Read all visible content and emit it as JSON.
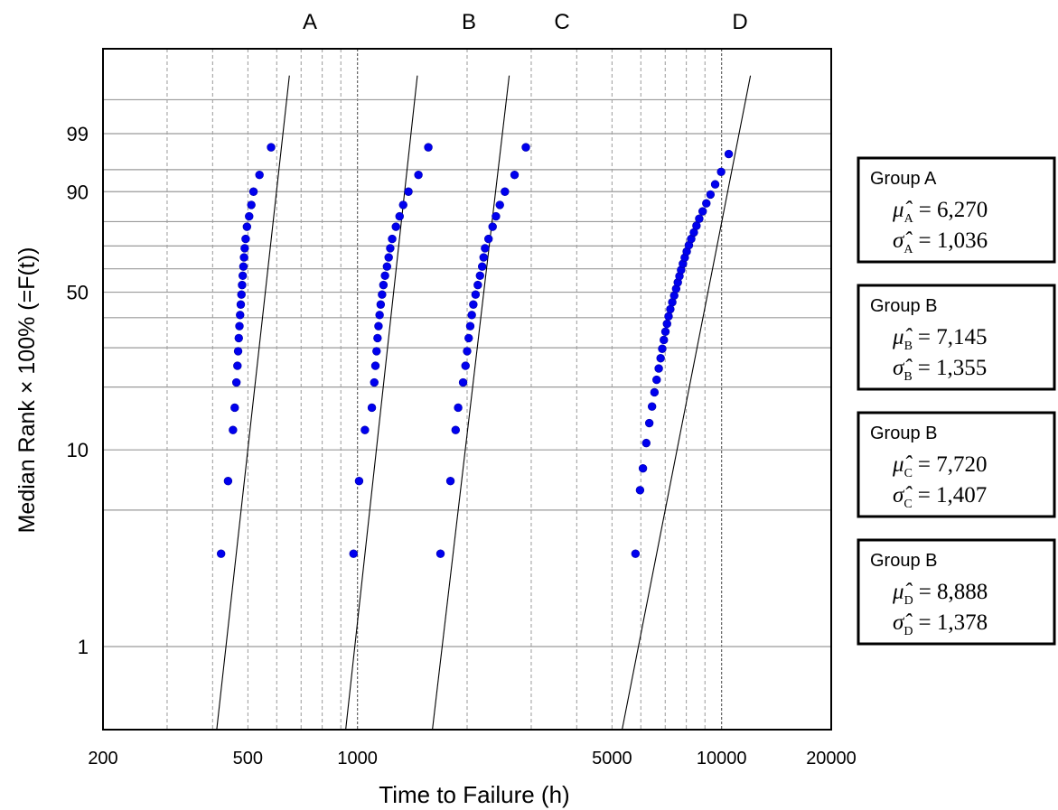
{
  "chart_data": {
    "type": "scatter",
    "title": "",
    "xlabel": "Time to Failure (h)",
    "ylabel": "Median Rank × 100% (=F(t))",
    "x_scale": "log",
    "xlim": [
      200,
      20000
    ],
    "x_tick_labels": [
      {
        "value": 200,
        "label": "200"
      },
      {
        "value": 500,
        "label": "500"
      },
      {
        "value": 1000,
        "label": "1000"
      },
      {
        "value": 5000,
        "label": "5000"
      },
      {
        "value": 10000,
        "label": "10000"
      },
      {
        "value": 20000,
        "label": "20000"
      }
    ],
    "y_scale": "weibull-probability",
    "ylim": [
      0.1,
      99.99
    ],
    "y_tick_labels": [
      {
        "value": 1,
        "label": "1"
      },
      {
        "value": 10,
        "label": "10"
      },
      {
        "value": 50,
        "label": "50"
      },
      {
        "value": 90,
        "label": "90"
      },
      {
        "value": 99,
        "label": "99"
      }
    ],
    "grid": true,
    "series": [
      {
        "name": "A",
        "color": "#0000ee",
        "line": [
          [
            380,
            0.1
          ],
          [
            650,
            99.99
          ]
        ],
        "points": [
          [
            422,
            3
          ],
          [
            441,
            7
          ],
          [
            455,
            12.5
          ],
          [
            460,
            16
          ],
          [
            465,
            21
          ],
          [
            468,
            25
          ],
          [
            470,
            29
          ],
          [
            472,
            33
          ],
          [
            474,
            37
          ],
          [
            476,
            41
          ],
          [
            478,
            45
          ],
          [
            480,
            49
          ],
          [
            482,
            53
          ],
          [
            484,
            57
          ],
          [
            486,
            61
          ],
          [
            488,
            65
          ],
          [
            490,
            69
          ],
          [
            493,
            73
          ],
          [
            497,
            78
          ],
          [
            504,
            82
          ],
          [
            511,
            86
          ],
          [
            518,
            90
          ],
          [
            538,
            94
          ],
          [
            579,
            98
          ]
        ]
      },
      {
        "name": "B",
        "color": "#0000ee",
        "line": [
          [
            860,
            0.1
          ],
          [
            1460,
            99.99
          ]
        ],
        "points": [
          [
            975,
            3
          ],
          [
            1010,
            7
          ],
          [
            1048,
            12.5
          ],
          [
            1095,
            16
          ],
          [
            1112,
            21
          ],
          [
            1120,
            25
          ],
          [
            1128,
            29
          ],
          [
            1135,
            33
          ],
          [
            1142,
            37
          ],
          [
            1150,
            41
          ],
          [
            1158,
            45
          ],
          [
            1168,
            49
          ],
          [
            1178,
            53
          ],
          [
            1190,
            57
          ],
          [
            1205,
            61
          ],
          [
            1218,
            65
          ],
          [
            1230,
            69
          ],
          [
            1245,
            73
          ],
          [
            1275,
            78
          ],
          [
            1305,
            82
          ],
          [
            1335,
            86
          ],
          [
            1380,
            90
          ],
          [
            1470,
            94
          ],
          [
            1565,
            98
          ]
        ]
      },
      {
        "name": "C",
        "color": "#0000ee",
        "line": [
          [
            1480,
            0.1
          ],
          [
            2610,
            99.99
          ]
        ],
        "points": [
          [
            1690,
            3
          ],
          [
            1800,
            7
          ],
          [
            1860,
            12.5
          ],
          [
            1890,
            16
          ],
          [
            1950,
            21
          ],
          [
            1980,
            25
          ],
          [
            2000,
            29
          ],
          [
            2020,
            33
          ],
          [
            2040,
            37
          ],
          [
            2060,
            41
          ],
          [
            2080,
            45
          ],
          [
            2110,
            49
          ],
          [
            2140,
            53
          ],
          [
            2170,
            57
          ],
          [
            2200,
            61
          ],
          [
            2220,
            65
          ],
          [
            2240,
            69
          ],
          [
            2290,
            73
          ],
          [
            2350,
            78
          ],
          [
            2400,
            82
          ],
          [
            2460,
            86
          ],
          [
            2540,
            90
          ],
          [
            2700,
            94
          ],
          [
            2900,
            98
          ]
        ]
      },
      {
        "name": "D",
        "color": "#0000ee",
        "line": [
          [
            4650,
            0.1
          ],
          [
            12000,
            99.99
          ]
        ],
        "points": [
          [
            5800,
            3
          ],
          [
            5970,
            6.3
          ],
          [
            6080,
            8.1
          ],
          [
            6210,
            10.8
          ],
          [
            6330,
            13.5
          ],
          [
            6440,
            16.2
          ],
          [
            6540,
            18.9
          ],
          [
            6630,
            21.6
          ],
          [
            6720,
            24.3
          ],
          [
            6800,
            27.0
          ],
          [
            6870,
            29.7
          ],
          [
            6940,
            32.4
          ],
          [
            7010,
            35.1
          ],
          [
            7080,
            37.8
          ],
          [
            7150,
            40.5
          ],
          [
            7230,
            43.2
          ],
          [
            7320,
            45.9
          ],
          [
            7410,
            48.6
          ],
          [
            7500,
            51.4
          ],
          [
            7580,
            54.1
          ],
          [
            7660,
            56.8
          ],
          [
            7740,
            59.5
          ],
          [
            7830,
            62.2
          ],
          [
            7920,
            64.9
          ],
          [
            8020,
            67.6
          ],
          [
            8130,
            70.3
          ],
          [
            8250,
            73.0
          ],
          [
            8390,
            75.7
          ],
          [
            8530,
            78.4
          ],
          [
            8680,
            81.1
          ],
          [
            8870,
            83.8
          ],
          [
            9080,
            86.5
          ],
          [
            9320,
            89.2
          ],
          [
            9600,
            91.9
          ],
          [
            9970,
            94.6
          ],
          [
            10460,
            97.3
          ]
        ]
      }
    ],
    "legend": "right",
    "annotations": [
      {
        "group_label": "Group A",
        "mu_symbol": "μ̂",
        "mu_subscript": "A",
        "mu": "= 6,270",
        "sigma_symbol": "σ̂",
        "sigma_subscript": "A",
        "sigma": "= 1,036"
      },
      {
        "group_label": "Group B",
        "mu_symbol": "μ̂",
        "mu_subscript": "B",
        "mu": "= 7,145",
        "sigma_symbol": "σ̂",
        "sigma_subscript": "B",
        "sigma": "= 1,355"
      },
      {
        "group_label": "Group B",
        "mu_symbol": "μ̂",
        "mu_subscript": "C",
        "mu": "= 7,720",
        "sigma_symbol": "σ̂",
        "sigma_subscript": "C",
        "sigma": "= 1,407"
      },
      {
        "group_label": "Group B",
        "mu_symbol": "μ̂",
        "mu_subscript": "D",
        "mu": "= 8,888",
        "sigma_symbol": "σ̂",
        "sigma_subscript": "D",
        "sigma": "= 1,378"
      }
    ]
  }
}
